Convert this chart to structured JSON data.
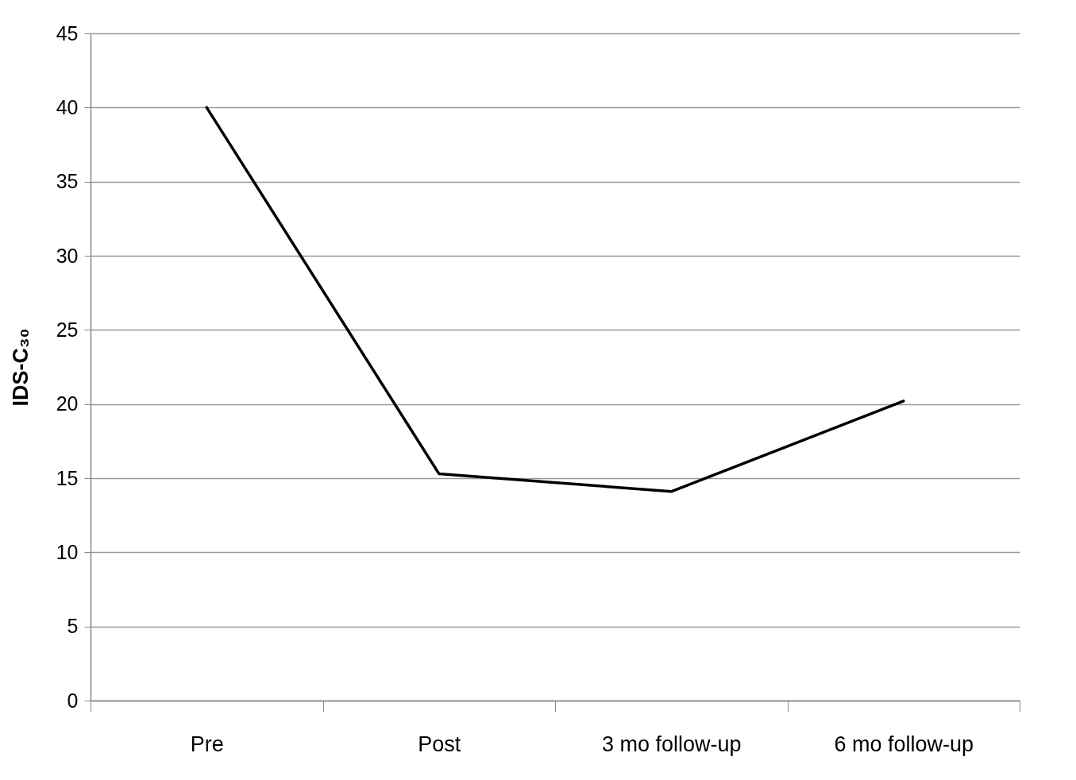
{
  "chart_data": {
    "type": "line",
    "ylabel": "IDS-C₃₀",
    "categories": [
      "Pre",
      "Post",
      "3 mo follow-up",
      "6 mo follow-up"
    ],
    "series": [
      {
        "color": "#000000",
        "values": [
          40,
          15.3,
          14.1,
          20.2
        ]
      }
    ],
    "ylim": [
      0,
      45
    ],
    "yticks": [
      0,
      5,
      10,
      15,
      20,
      25,
      30,
      35,
      40,
      45
    ],
    "grid": "y",
    "marker": "none",
    "line_style": "solid"
  }
}
